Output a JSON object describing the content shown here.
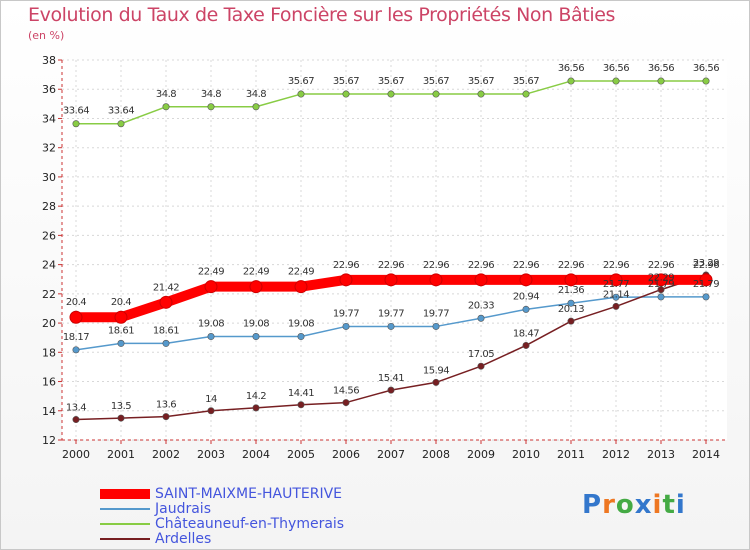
{
  "chart_data": {
    "type": "line",
    "title": "Evolution du Taux de Taxe Foncière sur les Propriétés Non Bâties",
    "ylabel": "(en %)",
    "xlabel": "",
    "x": [
      2000,
      2001,
      2002,
      2003,
      2004,
      2005,
      2006,
      2007,
      2008,
      2009,
      2010,
      2011,
      2012,
      2013,
      2014
    ],
    "ylim": [
      12,
      38
    ],
    "yticks": [
      12,
      14,
      16,
      18,
      20,
      22,
      24,
      26,
      28,
      30,
      32,
      34,
      36,
      38
    ],
    "series": [
      {
        "name": "SAINT-MAIXME-HAUTERIVE",
        "color": "#ff0000",
        "values": [
          20.4,
          20.4,
          21.42,
          22.49,
          22.49,
          22.49,
          22.96,
          22.96,
          22.96,
          22.96,
          22.96,
          22.96,
          22.96,
          22.96,
          22.96
        ],
        "labels": [
          "20.4",
          "20.4",
          "21.42",
          "22.49",
          "22.49",
          "22.49",
          "22.96",
          "22.96",
          "22.96",
          "22.96",
          "22.96",
          "22.96",
          "22.96",
          "22.96",
          "22.96"
        ]
      },
      {
        "name": "Jaudrais",
        "color": "#5599cc",
        "values": [
          18.17,
          18.61,
          18.61,
          19.08,
          19.08,
          19.08,
          19.77,
          19.77,
          19.77,
          20.33,
          20.94,
          21.36,
          21.77,
          21.79,
          21.79
        ],
        "labels": [
          "18.17",
          "18.61",
          "18.61",
          "19.08",
          "19.08",
          "19.08",
          "19.77",
          "19.77",
          "19.77",
          "20.33",
          "20.94",
          "21.36",
          "21.77",
          "21.79",
          "21.79"
        ]
      },
      {
        "name": "Châteauneuf-en-Thymerais",
        "color": "#88cc44",
        "values": [
          33.64,
          33.64,
          34.8,
          34.8,
          34.8,
          35.67,
          35.67,
          35.67,
          35.67,
          35.67,
          35.67,
          36.56,
          36.56,
          36.56,
          36.56
        ],
        "labels": [
          "33.64",
          "33.64",
          "34.8",
          "34.8",
          "34.8",
          "35.67",
          "35.67",
          "35.67",
          "35.67",
          "35.67",
          "35.67",
          "36.56",
          "36.56",
          "36.56",
          "36.56"
        ]
      },
      {
        "name": "Ardelles",
        "color": "#771f22",
        "values": [
          13.4,
          13.5,
          13.6,
          14,
          14.2,
          14.41,
          14.56,
          15.41,
          15.94,
          17.05,
          18.47,
          20.13,
          21.14,
          22.29,
          23.29
        ],
        "labels": [
          "13.4",
          "13.5",
          "13.6",
          "14",
          "14.2",
          "14.41",
          "14.56",
          "15.41",
          "15.94",
          "17.05",
          "18.47",
          "20.13",
          "21.14",
          "22.29",
          "23.29"
        ]
      }
    ]
  },
  "logo": {
    "text": "Proxiti"
  }
}
